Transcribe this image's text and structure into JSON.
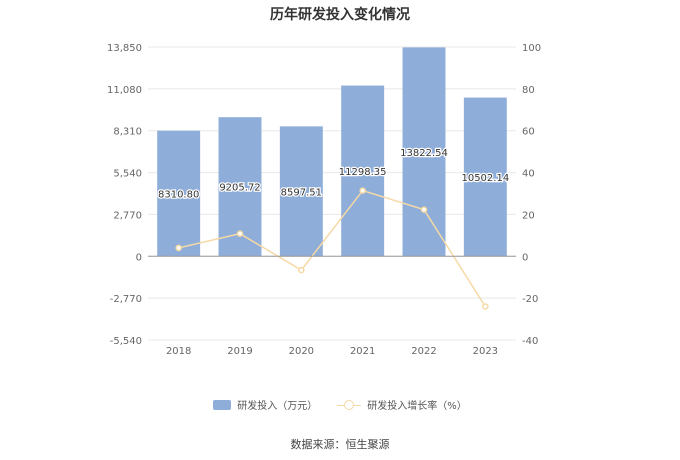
{
  "title": "历年研发投入变化情况",
  "source": "数据来源：恒生聚源",
  "chart_data": {
    "type": "bar",
    "categories": [
      "2018",
      "2019",
      "2020",
      "2021",
      "2022",
      "2023"
    ],
    "series": [
      {
        "name": "研发投入（万元）",
        "type": "bar",
        "axis": "left",
        "values": [
          8310.8,
          9205.72,
          8597.51,
          11298.35,
          13822.54,
          10502.14
        ],
        "labels": [
          "8310.80",
          "9205.72",
          "8597.51",
          "11298.35",
          "13822.54",
          "10502.14"
        ],
        "color": "#8fadd9"
      },
      {
        "name": "研发投入增长率（%）",
        "type": "line",
        "axis": "right",
        "values": [
          4,
          10.8,
          -6.6,
          31.4,
          22.3,
          -24.0
        ],
        "color": "#f5d9a6"
      }
    ],
    "left_axis": {
      "ticks": [
        "13,850",
        "11,080",
        "8,310",
        "5,540",
        "2,770",
        "0",
        "-2,770",
        "-5,540"
      ],
      "range": [
        -5540,
        13850
      ]
    },
    "right_axis": {
      "ticks": [
        "100",
        "80",
        "60",
        "40",
        "20",
        "0",
        "-20",
        "-40"
      ],
      "range": [
        -40,
        100
      ]
    },
    "grid": true,
    "legend_position": "bottom"
  }
}
